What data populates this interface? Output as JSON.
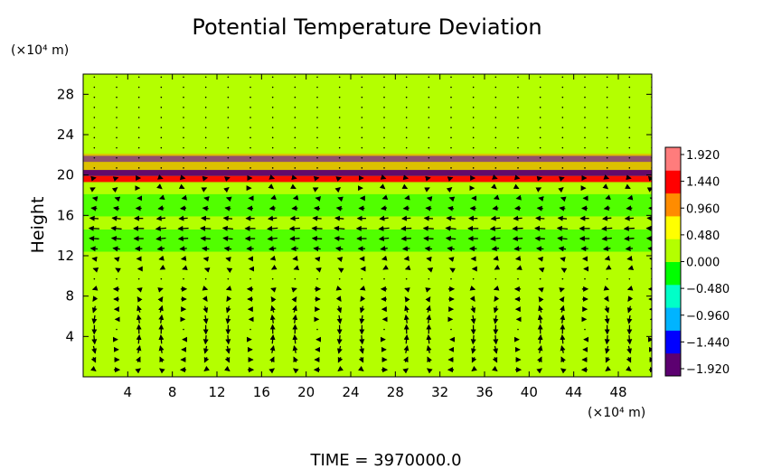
{
  "chart_data": {
    "type": "heatmap",
    "title": "Potential Temperature Deviation",
    "ylabel": "Height",
    "y_unit": "(×10⁴ m)",
    "x_unit": "(×10⁴ m)",
    "footer": "TIME  =  3970000.0",
    "x_ticks": [
      "4",
      "8",
      "12",
      "16",
      "20",
      "24",
      "28",
      "32",
      "36",
      "40",
      "44",
      "48"
    ],
    "y_ticks": [
      "4",
      "8",
      "12",
      "16",
      "20",
      "24",
      "28"
    ],
    "xlim": [
      0,
      51
    ],
    "ylim": [
      0,
      30
    ],
    "colorbar": {
      "min": -1.92,
      "max": 1.92,
      "labels": [
        "1.920",
        "1.440",
        "0.960",
        "0.480",
        "0.000",
        "−0.480",
        "−0.960",
        "−1.440",
        "−1.920"
      ],
      "colors": [
        "#5c0070",
        "#0000ff",
        "#00b4ff",
        "#00ffc8",
        "#00ff00",
        "#b4ff00",
        "#ffff00",
        "#ff8c00",
        "#ff0000",
        "#ff7c7c"
      ]
    },
    "field_bands": [
      {
        "height": 21.6,
        "value": -1.2
      },
      {
        "height": 21.0,
        "value": 0.9
      },
      {
        "height": 20.2,
        "value": -1.7
      },
      {
        "height": 19.6,
        "value": 1.5
      },
      {
        "height": 17.0,
        "value": -0.35
      },
      {
        "height": 13.5,
        "value": -0.3
      }
    ]
  }
}
